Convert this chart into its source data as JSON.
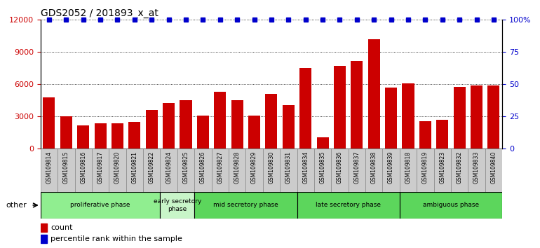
{
  "title": "GDS2052 / 201893_x_at",
  "samples": [
    "GSM109814",
    "GSM109815",
    "GSM109816",
    "GSM109817",
    "GSM109820",
    "GSM109821",
    "GSM109822",
    "GSM109824",
    "GSM109825",
    "GSM109826",
    "GSM109827",
    "GSM109828",
    "GSM109829",
    "GSM109830",
    "GSM109831",
    "GSM109834",
    "GSM109835",
    "GSM109836",
    "GSM109837",
    "GSM109838",
    "GSM109839",
    "GSM109818",
    "GSM109819",
    "GSM109823",
    "GSM109832",
    "GSM109833",
    "GSM109840"
  ],
  "counts": [
    4800,
    3050,
    2150,
    2350,
    2350,
    2500,
    3600,
    4250,
    4550,
    3100,
    5300,
    4500,
    3100,
    5100,
    4050,
    7500,
    1100,
    7700,
    8200,
    10200,
    5700,
    6100,
    2550,
    2700,
    5750,
    5900,
    5900
  ],
  "percentile": 100,
  "bar_color": "#cc0000",
  "percentile_color": "#0000cc",
  "ylim_left": [
    0,
    12000
  ],
  "ylim_right": [
    0,
    100
  ],
  "yticks_left": [
    0,
    3000,
    6000,
    9000,
    12000
  ],
  "yticks_right": [
    0,
    25,
    50,
    75,
    100
  ],
  "ytick_labels_right": [
    "0",
    "25",
    "50",
    "75",
    "100%"
  ],
  "phases": [
    {
      "label": "proliferative phase",
      "start": 0,
      "end": 7,
      "color": "#90ee90"
    },
    {
      "label": "early secretory\nphase",
      "start": 7,
      "end": 9,
      "color": "#c8f5c8"
    },
    {
      "label": "mid secretory phase",
      "start": 9,
      "end": 15,
      "color": "#5cd65c"
    },
    {
      "label": "late secretory phase",
      "start": 15,
      "end": 21,
      "color": "#5cd65c"
    },
    {
      "label": "ambiguous phase",
      "start": 21,
      "end": 27,
      "color": "#5cd65c"
    }
  ],
  "other_label": "other",
  "legend_count_label": "count",
  "legend_percentile_label": "percentile rank within the sample",
  "tick_bg_color": "#cccccc",
  "phase_border_color": "#000000",
  "background_color": "#ffffff"
}
